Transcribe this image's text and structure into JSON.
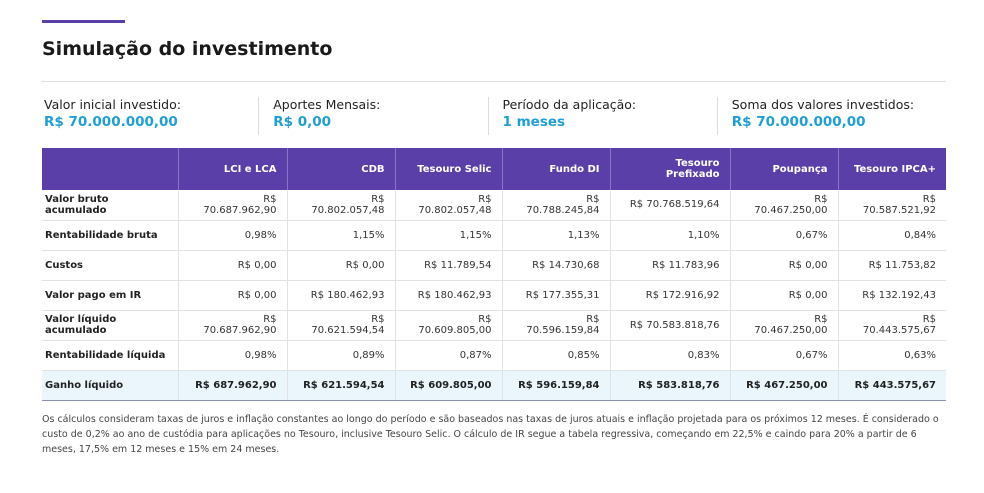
{
  "title": "Simulação do investimento",
  "summary": [
    {
      "label": "Valor inicial investido:",
      "value": "R$ 70.000.000,00"
    },
    {
      "label": "Aportes Mensais:",
      "value": "R$ 0,00"
    },
    {
      "label": "Período da aplicação:",
      "value": "1 meses"
    },
    {
      "label": "Soma dos valores investidos:",
      "value": "R$ 70.000.000,00"
    }
  ],
  "table": {
    "headers": [
      "",
      "LCI e LCA",
      "CDB",
      "Tesouro Selic",
      "Fundo DI",
      "Tesouro Prefixado",
      "Poupança",
      "Tesouro IPCA+"
    ],
    "rows": [
      [
        "Valor bruto acumulado",
        "R$ 70.687.962,90",
        "R$ 70.802.057,48",
        "R$ 70.802.057,48",
        "R$ 70.788.245,84",
        "R$ 70.768.519,64",
        "R$ 70.467.250,00",
        "R$ 70.587.521,92"
      ],
      [
        "Rentabilidade bruta",
        "0,98%",
        "1,15%",
        "1,15%",
        "1,13%",
        "1,10%",
        "0,67%",
        "0,84%"
      ],
      [
        "Custos",
        "R$ 0,00",
        "R$ 0,00",
        "R$ 11.789,54",
        "R$ 14.730,68",
        "R$ 11.783,96",
        "R$ 0,00",
        "R$ 11.753,82"
      ],
      [
        "Valor pago em IR",
        "R$ 0,00",
        "R$ 180.462,93",
        "R$ 180.462,93",
        "R$ 177.355,31",
        "R$ 172.916,92",
        "R$ 0,00",
        "R$ 132.192,43"
      ],
      [
        "Valor líquido acumulado",
        "R$ 70.687.962,90",
        "R$ 70.621.594,54",
        "R$ 70.609.805,00",
        "R$ 70.596.159,84",
        "R$ 70.583.818,76",
        "R$ 70.467.250,00",
        "R$ 70.443.575,67"
      ],
      [
        "Rentabilidade líquida",
        "0,98%",
        "0,89%",
        "0,87%",
        "0,85%",
        "0,83%",
        "0,67%",
        "0,63%"
      ],
      [
        "Ganho líquido",
        "R$ 687.962,90",
        "R$ 621.594,54",
        "R$ 609.805,00",
        "R$ 596.159,84",
        "R$ 583.818,76",
        "R$ 467.250,00",
        "R$ 443.575,67"
      ]
    ]
  },
  "note": "Os cálculos consideram taxas de juros e inflação constantes ao longo do período e são baseados nas taxas de juros atuais e inflação projetada para os próximos 12 meses. É considerado o custo de 0,2% ao ano de custódia para aplicações no Tesouro, inclusive Tesouro Selic. O cálculo de IR segue a tabela regressiva, começando em 22,5% e caindo para 20% a partir de 6 meses, 17,5% em 12 meses e 15% em 24 meses."
}
